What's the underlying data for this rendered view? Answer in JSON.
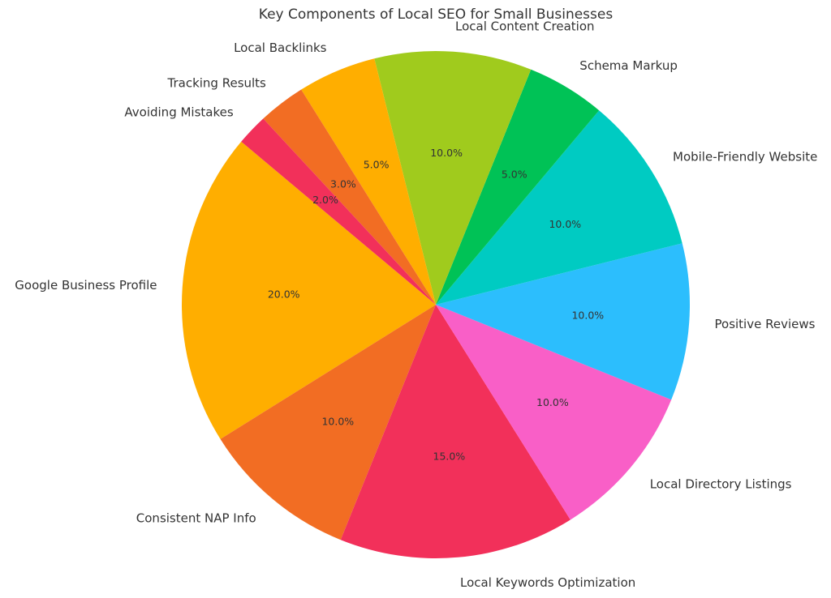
{
  "chart_data": {
    "type": "pie",
    "title": "Key Components of Local SEO for Small Businesses",
    "categories": [
      "Google Business Profile",
      "Consistent NAP Info",
      "Local Keywords Optimization",
      "Local Directory Listings",
      "Positive Reviews",
      "Mobile-Friendly Website",
      "Schema Markup",
      "Local Content Creation",
      "Local Backlinks",
      "Tracking Results",
      "Avoiding Mistakes"
    ],
    "values": [
      20,
      10,
      15,
      10,
      10,
      10,
      5,
      10,
      5,
      3,
      2
    ],
    "percent_labels": [
      "20.0%",
      "10.0%",
      "15.0%",
      "10.0%",
      "10.0%",
      "10.0%",
      "5.0%",
      "10.0%",
      "5.0%",
      "3.0%",
      "2.0%"
    ],
    "colors": [
      "#FFAE00",
      "#F26D23",
      "#F2305A",
      "#F95FC7",
      "#2CBEFD",
      "#00CBC2",
      "#00C256",
      "#A0CB1D",
      "#FFAE00",
      "#F26D23",
      "#F2305A"
    ],
    "start_angle_deg": 140,
    "direction": "counterclockwise"
  }
}
